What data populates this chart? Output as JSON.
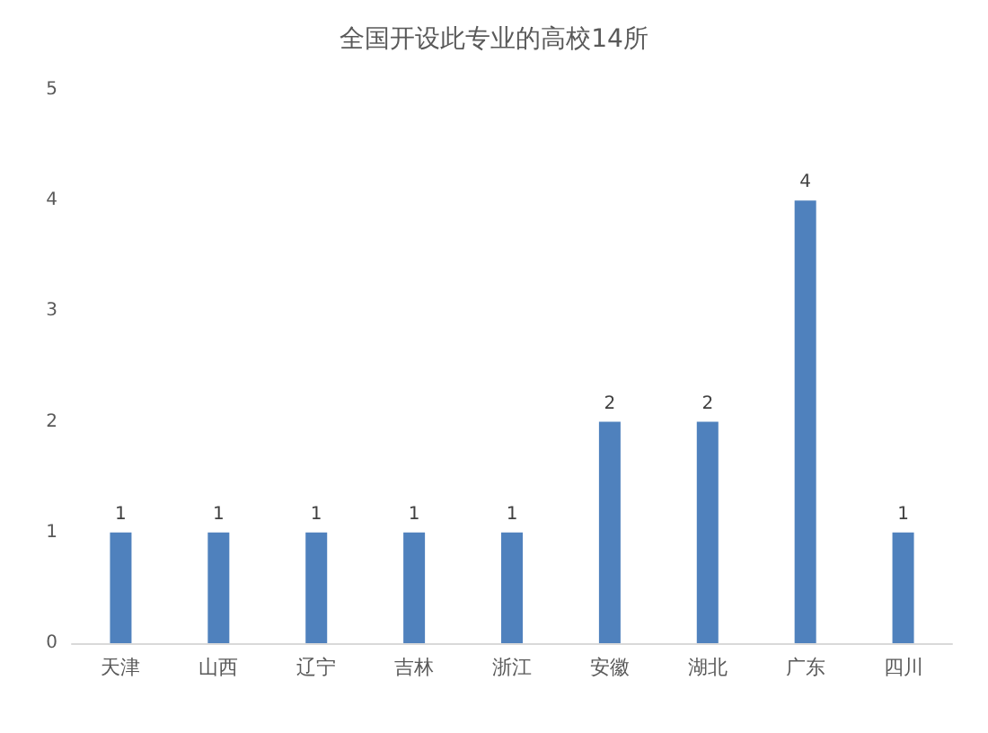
{
  "chart_data": {
    "type": "bar",
    "title": "全国开设此专业的高校14所",
    "categories": [
      "天津",
      "山西",
      "辽宁",
      "吉林",
      "浙江",
      "安徽",
      "湖北",
      "广东",
      "四川"
    ],
    "values": [
      1,
      1,
      1,
      1,
      1,
      2,
      2,
      4,
      1
    ],
    "color": "#4f81bd",
    "ylim": [
      0,
      5
    ],
    "yticks": [
      0,
      1,
      2,
      3,
      4,
      5
    ],
    "grid": false,
    "data_labels": true
  }
}
